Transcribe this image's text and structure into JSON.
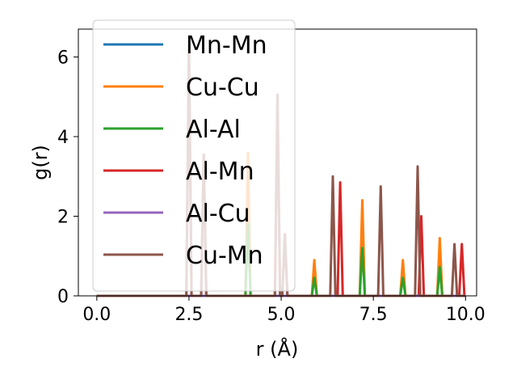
{
  "chart_data": {
    "type": "line",
    "xlabel": "r (Å)",
    "ylabel": "g(r)",
    "xlim": [
      -0.5,
      10.3
    ],
    "ylim": [
      0,
      6.7
    ],
    "xticks": [
      "0.0",
      "2.5",
      "5.0",
      "7.5",
      "10.0"
    ],
    "yticks": [
      "0",
      "2",
      "4",
      "6"
    ],
    "grid": false,
    "legend_position": "upper-left",
    "series": [
      {
        "name": "Mn-Mn",
        "color": "#1f77b4",
        "peaks": []
      },
      {
        "name": "Cu-Cu",
        "color": "#ff7f0e",
        "peaks": [
          [
            4.1,
            3.6
          ],
          [
            5.9,
            0.9
          ],
          [
            7.2,
            2.4
          ],
          [
            8.3,
            0.9
          ],
          [
            9.3,
            1.45
          ]
        ]
      },
      {
        "name": "Al-Al",
        "color": "#2ca02c",
        "peaks": [
          [
            4.1,
            1.8
          ],
          [
            5.9,
            0.45
          ],
          [
            7.2,
            1.2
          ],
          [
            8.3,
            0.45
          ],
          [
            9.3,
            0.72
          ]
        ]
      },
      {
        "name": "Al-Mn",
        "color": "#d62728",
        "peaks": [
          [
            2.5,
            6.3
          ],
          [
            2.9,
            3.55
          ],
          [
            4.9,
            5.05
          ],
          [
            5.1,
            1.55
          ],
          [
            6.6,
            2.85
          ],
          [
            8.8,
            2.0
          ],
          [
            9.9,
            1.3
          ]
        ]
      },
      {
        "name": "Al-Cu",
        "color": "#9467bd",
        "peaks": []
      },
      {
        "name": "Cu-Mn",
        "color": "#8c564b",
        "peaks": [
          [
            2.5,
            6.3
          ],
          [
            2.9,
            3.55
          ],
          [
            4.9,
            5.05
          ],
          [
            5.1,
            1.55
          ],
          [
            6.4,
            3.0
          ],
          [
            7.7,
            2.75
          ],
          [
            8.7,
            3.25
          ],
          [
            9.7,
            1.3
          ]
        ]
      }
    ]
  }
}
